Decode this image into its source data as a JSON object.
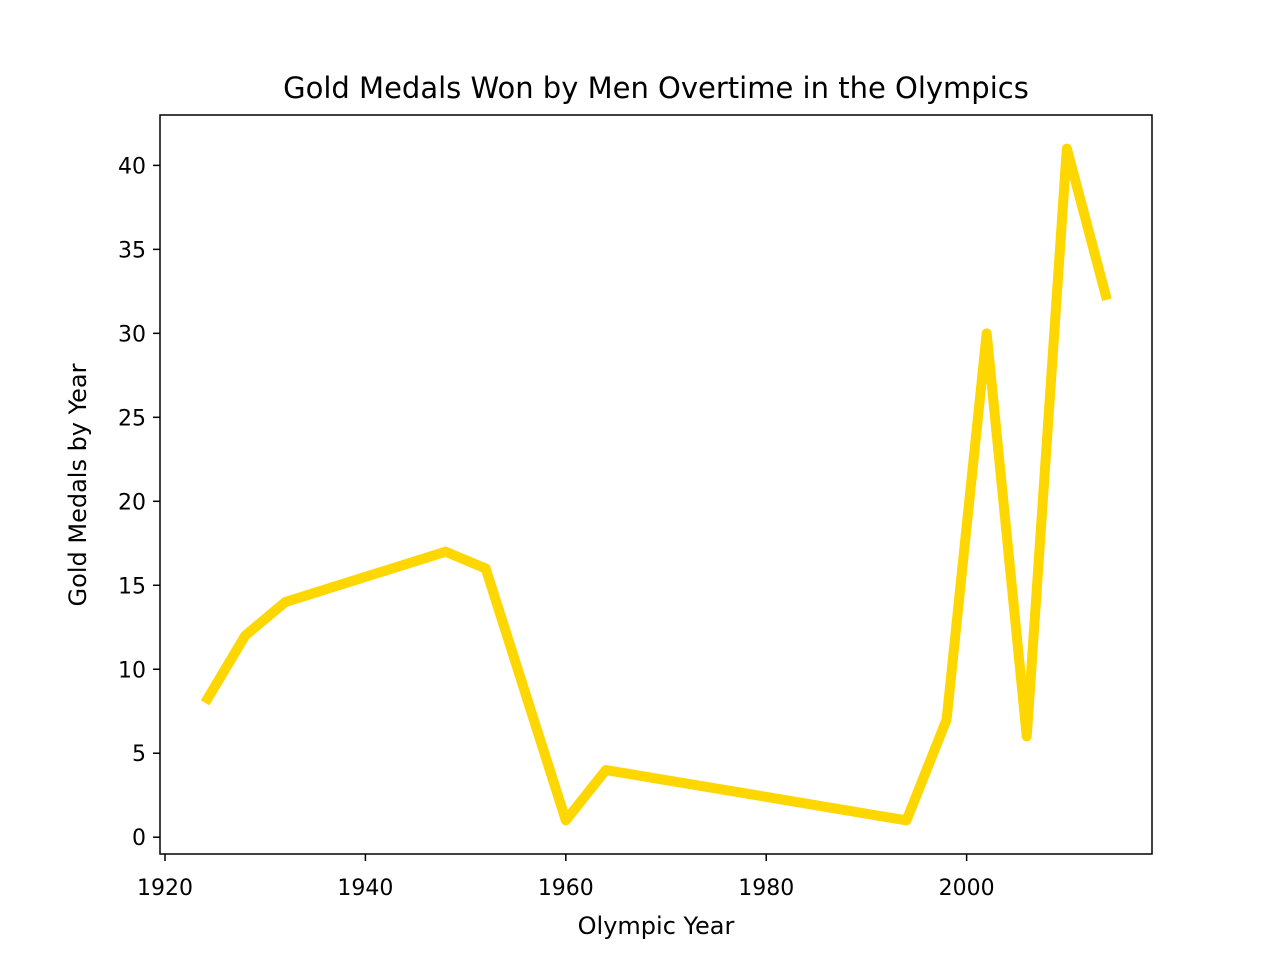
{
  "chart_data": {
    "type": "line",
    "title": "Gold Medals Won by Men Overtime in the Olympics",
    "xlabel": "Olympic Year",
    "ylabel": "Gold Medals by Year",
    "xlim": [
      1919.5,
      2018.5
    ],
    "ylim": [
      -1,
      43
    ],
    "xticks": [
      1920,
      1940,
      1960,
      1980,
      2000
    ],
    "yticks": [
      0,
      5,
      10,
      15,
      20,
      25,
      30,
      35,
      40
    ],
    "grid": false,
    "legend": "none",
    "line_color": "#FFD700",
    "series": [
      {
        "x": [
          1924,
          1928,
          1932,
          1948,
          1952,
          1960,
          1964,
          1994,
          1998,
          2002,
          2006,
          2010,
          2014
        ],
        "values": [
          8,
          12,
          14,
          17,
          16,
          1,
          4,
          1,
          7,
          30,
          6,
          41,
          32
        ]
      }
    ]
  }
}
